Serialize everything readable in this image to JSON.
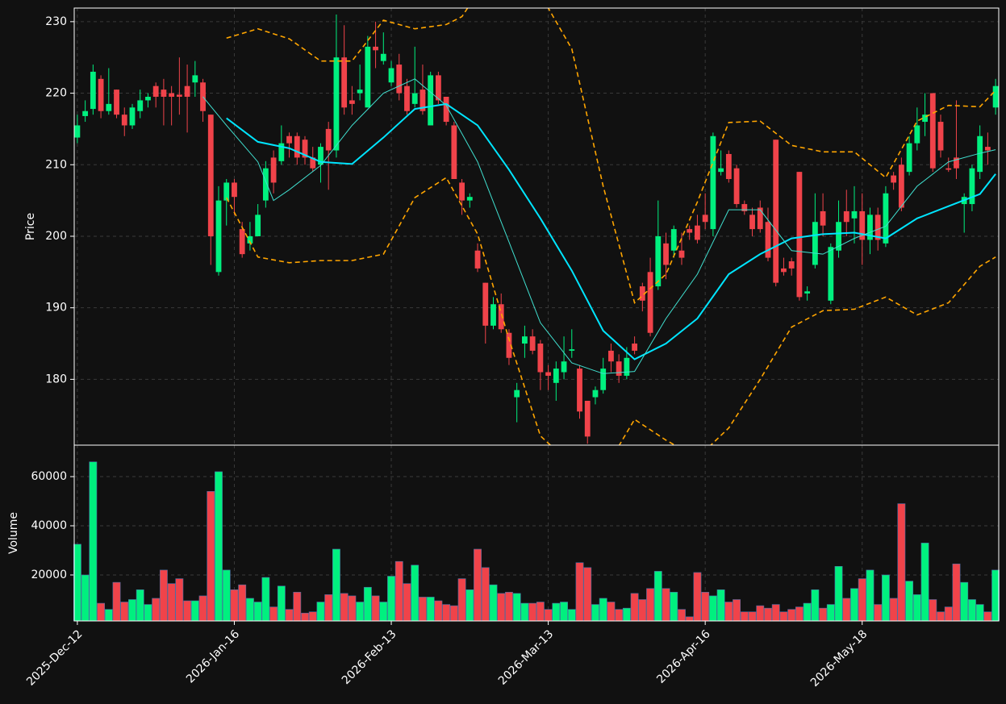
{
  "chart_data": {
    "type": "candlestick",
    "ylabel": "Price",
    "volume_ylabel": "Volume",
    "up_color": "#00f07f",
    "down_color": "#f0434a",
    "grid": true,
    "xlim": [
      -0.4,
      117.4
    ],
    "xticks": [
      {
        "value": 0,
        "label": "2025-Dec-12"
      },
      {
        "value": 20,
        "label": "2026-Jan-16"
      },
      {
        "value": 40,
        "label": "2026-Feb-13"
      },
      {
        "value": 60,
        "label": "2026-Mar-13"
      },
      {
        "value": 80,
        "label": "2026-Apr-16"
      },
      {
        "value": 100,
        "label": "2026-May-18"
      }
    ],
    "ylim": [
      170.8,
      231.9
    ],
    "yticks": [
      180,
      190,
      200,
      210,
      220,
      230
    ],
    "volume_ylim": [
      1300,
      72800
    ],
    "volume_yticks": [
      20000,
      40000,
      60000
    ],
    "open": [
      213.8,
      216.8,
      217.8,
      222,
      217.5,
      220.5,
      217,
      215.5,
      217.5,
      219,
      221,
      220.5,
      220,
      219.8,
      221,
      221.5,
      221.5,
      217,
      195,
      205,
      207.5,
      201,
      199,
      200,
      205,
      211,
      210.5,
      214,
      214,
      213.5,
      211,
      210,
      215,
      212,
      225,
      219,
      220,
      218,
      226.5,
      224.5,
      221.5,
      224,
      221,
      218.5,
      220.5,
      215.5,
      222.5,
      219.5,
      215.5,
      207.5,
      205,
      198,
      193.5,
      187.5,
      190.5,
      186.5,
      177.5,
      185,
      186,
      185,
      181,
      179.5,
      181,
      184,
      181.5,
      177,
      177.5,
      178.5,
      184,
      182.5,
      180.5,
      185,
      193,
      195,
      193,
      199,
      198,
      198,
      201,
      201.5,
      203,
      201,
      209,
      211.5,
      209.5,
      204.5,
      203,
      204,
      202,
      213.5,
      195.5,
      196.5,
      209,
      192,
      196,
      203.5,
      191,
      198,
      203.5,
      202.5,
      203.5,
      199.5,
      203,
      199,
      208.5,
      210,
      209,
      213,
      216,
      220,
      216,
      209.5,
      211,
      204.5,
      204.5,
      209,
      212.5,
      218
    ],
    "high": [
      217,
      219,
      224,
      222.5,
      223.5,
      220.5,
      218,
      218.5,
      220.5,
      220,
      221.5,
      222,
      221,
      225,
      224,
      224.5,
      222,
      217,
      207,
      208,
      208,
      202,
      202,
      204.5,
      210.5,
      212,
      215.5,
      214.5,
      214.5,
      214,
      212.5,
      213,
      216,
      231,
      229.5,
      221,
      224,
      228,
      230,
      228.5,
      224.5,
      225.5,
      222,
      226.5,
      224,
      223,
      223,
      219.5,
      216,
      208,
      206,
      199,
      193.5,
      191.5,
      192,
      187,
      179.5,
      187.5,
      187,
      185.5,
      182,
      182.5,
      186,
      187,
      182,
      177,
      179,
      183,
      185,
      183.5,
      184.5,
      186,
      193.5,
      197,
      205,
      200.5,
      201.5,
      200.5,
      201.5,
      203,
      206,
      214.5,
      212,
      212,
      210,
      205,
      204,
      205,
      204,
      213.5,
      197,
      197,
      209,
      193,
      206,
      206,
      199,
      205,
      206.5,
      207,
      206,
      204,
      204,
      207,
      209,
      211,
      214,
      218,
      220,
      220,
      217,
      211,
      219,
      206,
      210,
      215.5,
      214.5,
      222
    ],
    "low": [
      213,
      216,
      217,
      216.5,
      217,
      216.5,
      214,
      215,
      216.5,
      218,
      218,
      215.5,
      215.5,
      217,
      214.5,
      219.5,
      216,
      196,
      194.5,
      201.5,
      203,
      197,
      198,
      200,
      204,
      206,
      210,
      211,
      210,
      210,
      209,
      207.5,
      206.5,
      211,
      217,
      217,
      219,
      218,
      223.5,
      224,
      221,
      219,
      217,
      218,
      217,
      215.5,
      218.5,
      215.5,
      208,
      203,
      204,
      195,
      185,
      187,
      186.5,
      182,
      174,
      183,
      183.5,
      178.5,
      178.5,
      177,
      180,
      183,
      174.5,
      171,
      176.5,
      178,
      181,
      179.5,
      180,
      183.5,
      189.5,
      186,
      192.5,
      194,
      197,
      196,
      199.5,
      199,
      201,
      200,
      208.5,
      207.5,
      204,
      203,
      200,
      200.5,
      196.5,
      193,
      194.5,
      194.5,
      191,
      191,
      195.5,
      200,
      190.5,
      197,
      200,
      199,
      196,
      197.5,
      198,
      198.5,
      206.5,
      203.5,
      208.5,
      212,
      214,
      209,
      211,
      209,
      208,
      200.5,
      203.5,
      208,
      210,
      217
    ],
    "close": [
      215.5,
      217.5,
      223,
      217.5,
      218.5,
      217,
      215.5,
      218,
      219,
      219.5,
      219.5,
      219.5,
      219.5,
      219.5,
      219.5,
      222.5,
      217.5,
      200,
      205,
      207.5,
      205.5,
      197.5,
      200,
      203,
      209.5,
      207.5,
      213,
      213,
      211,
      211,
      209.5,
      212.5,
      212,
      225,
      218,
      218.5,
      220.5,
      226.5,
      226,
      225.5,
      223.5,
      220,
      217.5,
      220,
      217.5,
      222.5,
      219,
      216,
      208,
      205,
      205.5,
      195.5,
      187.5,
      190.5,
      187,
      183,
      178.5,
      186,
      184,
      181,
      180.5,
      181.5,
      182.5,
      184.2,
      175.5,
      172,
      178.5,
      181.5,
      182.5,
      180.5,
      183,
      184,
      191,
      186.5,
      200,
      196,
      201,
      197,
      200.5,
      199.5,
      202,
      214,
      209.5,
      208,
      204.5,
      203.5,
      201,
      201,
      197,
      193.5,
      195,
      195.5,
      191.5,
      192.3,
      202,
      201.5,
      198.5,
      202,
      202,
      203.5,
      199.5,
      203,
      199.5,
      206,
      207.5,
      204,
      213,
      215.5,
      217,
      209.5,
      212,
      209.3,
      209.5,
      205.5,
      209.5,
      214,
      212,
      221
    ],
    "volume": [
      32500,
      20000,
      66000,
      8500,
      6000,
      17000,
      9000,
      10000,
      14000,
      8000,
      10500,
      22000,
      16500,
      18500,
      9500,
      9500,
      11500,
      54000,
      62000,
      22000,
      14000,
      16000,
      10500,
      9000,
      19000,
      7000,
      15500,
      6000,
      13000,
      4500,
      5000,
      9000,
      12000,
      30500,
      12500,
      11500,
      9000,
      15000,
      11500,
      9000,
      19500,
      25500,
      16500,
      24000,
      11000,
      11000,
      9500,
      8000,
      7500,
      18500,
      14000,
      30500,
      23000,
      16000,
      12500,
      13000,
      12500,
      8500,
      8500,
      9000,
      6000,
      8500,
      9000,
      6000,
      25000,
      23000,
      8000,
      10500,
      9000,
      6000,
      6500,
      12500,
      10000,
      14500,
      21500,
      14500,
      13000,
      6000,
      3000,
      21000,
      13000,
      11500,
      14000,
      9000,
      10000,
      5000,
      5000,
      7500,
      6500,
      8000,
      5000,
      6000,
      7000,
      8500,
      14000,
      6500,
      8000,
      23500,
      10500,
      14500,
      18500,
      22000,
      8000,
      20000,
      10500,
      49000,
      17500,
      12000,
      33000,
      10000,
      5000,
      7000,
      24500,
      17000,
      10000,
      8000,
      5000,
      22000
    ],
    "overlays": [
      {
        "color": "#00e5ff",
        "width": 2,
        "style": "solid",
        "x": [
          19,
          23,
          27,
          31,
          35,
          39,
          43,
          47,
          51,
          55,
          59,
          63,
          67,
          71,
          75,
          79,
          83,
          87,
          91,
          95,
          99,
          103,
          107,
          111,
          115,
          117
        ],
        "values": [
          216.5,
          213.2,
          212.3,
          210.4,
          210.1,
          213.8,
          217.8,
          218.5,
          215.5,
          209.3,
          202.5,
          195.2,
          186.8,
          182.8,
          185,
          188.5,
          194.7,
          197.5,
          199.7,
          200.3,
          200.5,
          199.7,
          202.5,
          204.2,
          205.9,
          208.7
        ]
      },
      {
        "color": "#40e0d0",
        "width": 1,
        "style": "solid",
        "x": [
          16,
          19,
          23,
          25,
          27,
          31,
          35,
          39,
          43,
          47,
          51,
          55,
          59,
          63,
          67,
          71,
          75,
          79,
          83,
          87,
          91,
          95,
          99,
          103,
          107,
          111,
          115,
          117
        ],
        "values": [
          219.5,
          215.5,
          210.4,
          205,
          206.5,
          209.9,
          215.5,
          220,
          222,
          218.3,
          210.4,
          199.2,
          187.9,
          182.3,
          180.8,
          181.1,
          188.5,
          194.7,
          203.7,
          203.7,
          198,
          197.5,
          199.7,
          201.4,
          207,
          210.4,
          211.6,
          212.1
        ]
      },
      {
        "color": "#ffa500",
        "width": 1.6,
        "style": "dashed",
        "x": [
          19,
          23,
          27,
          31,
          35,
          39,
          43,
          47,
          49,
          51,
          55,
          59,
          60,
          63,
          67,
          71,
          75,
          79,
          83,
          87,
          91,
          95,
          99,
          103,
          107,
          111,
          115,
          117
        ],
        "values": [
          227.7,
          229,
          227.6,
          224.5,
          224.5,
          230.2,
          229,
          229.6,
          230.7,
          234,
          236,
          233,
          231.9,
          226.2,
          207,
          190.7,
          194.7,
          204.8,
          215.9,
          216.1,
          212.7,
          211.8,
          211.8,
          208.2,
          216.1,
          218.3,
          218.1,
          220.4
        ]
      },
      {
        "color": "#ffa500",
        "width": 1.6,
        "style": "dashed",
        "x": [
          19,
          23,
          27,
          31,
          35,
          39,
          43,
          47,
          51,
          55,
          59,
          63,
          67,
          71,
          75,
          79,
          83,
          87,
          91,
          95,
          99,
          103,
          107,
          111,
          115,
          117
        ],
        "values": [
          205.4,
          197.1,
          196.3,
          196.6,
          196.6,
          197.5,
          205.4,
          208.2,
          200.3,
          185.6,
          172.1,
          168,
          167,
          174.4,
          171.5,
          169,
          173.2,
          180,
          187.3,
          189.6,
          189.8,
          191.5,
          189,
          190.7,
          195.8,
          197.1
        ]
      }
    ]
  }
}
